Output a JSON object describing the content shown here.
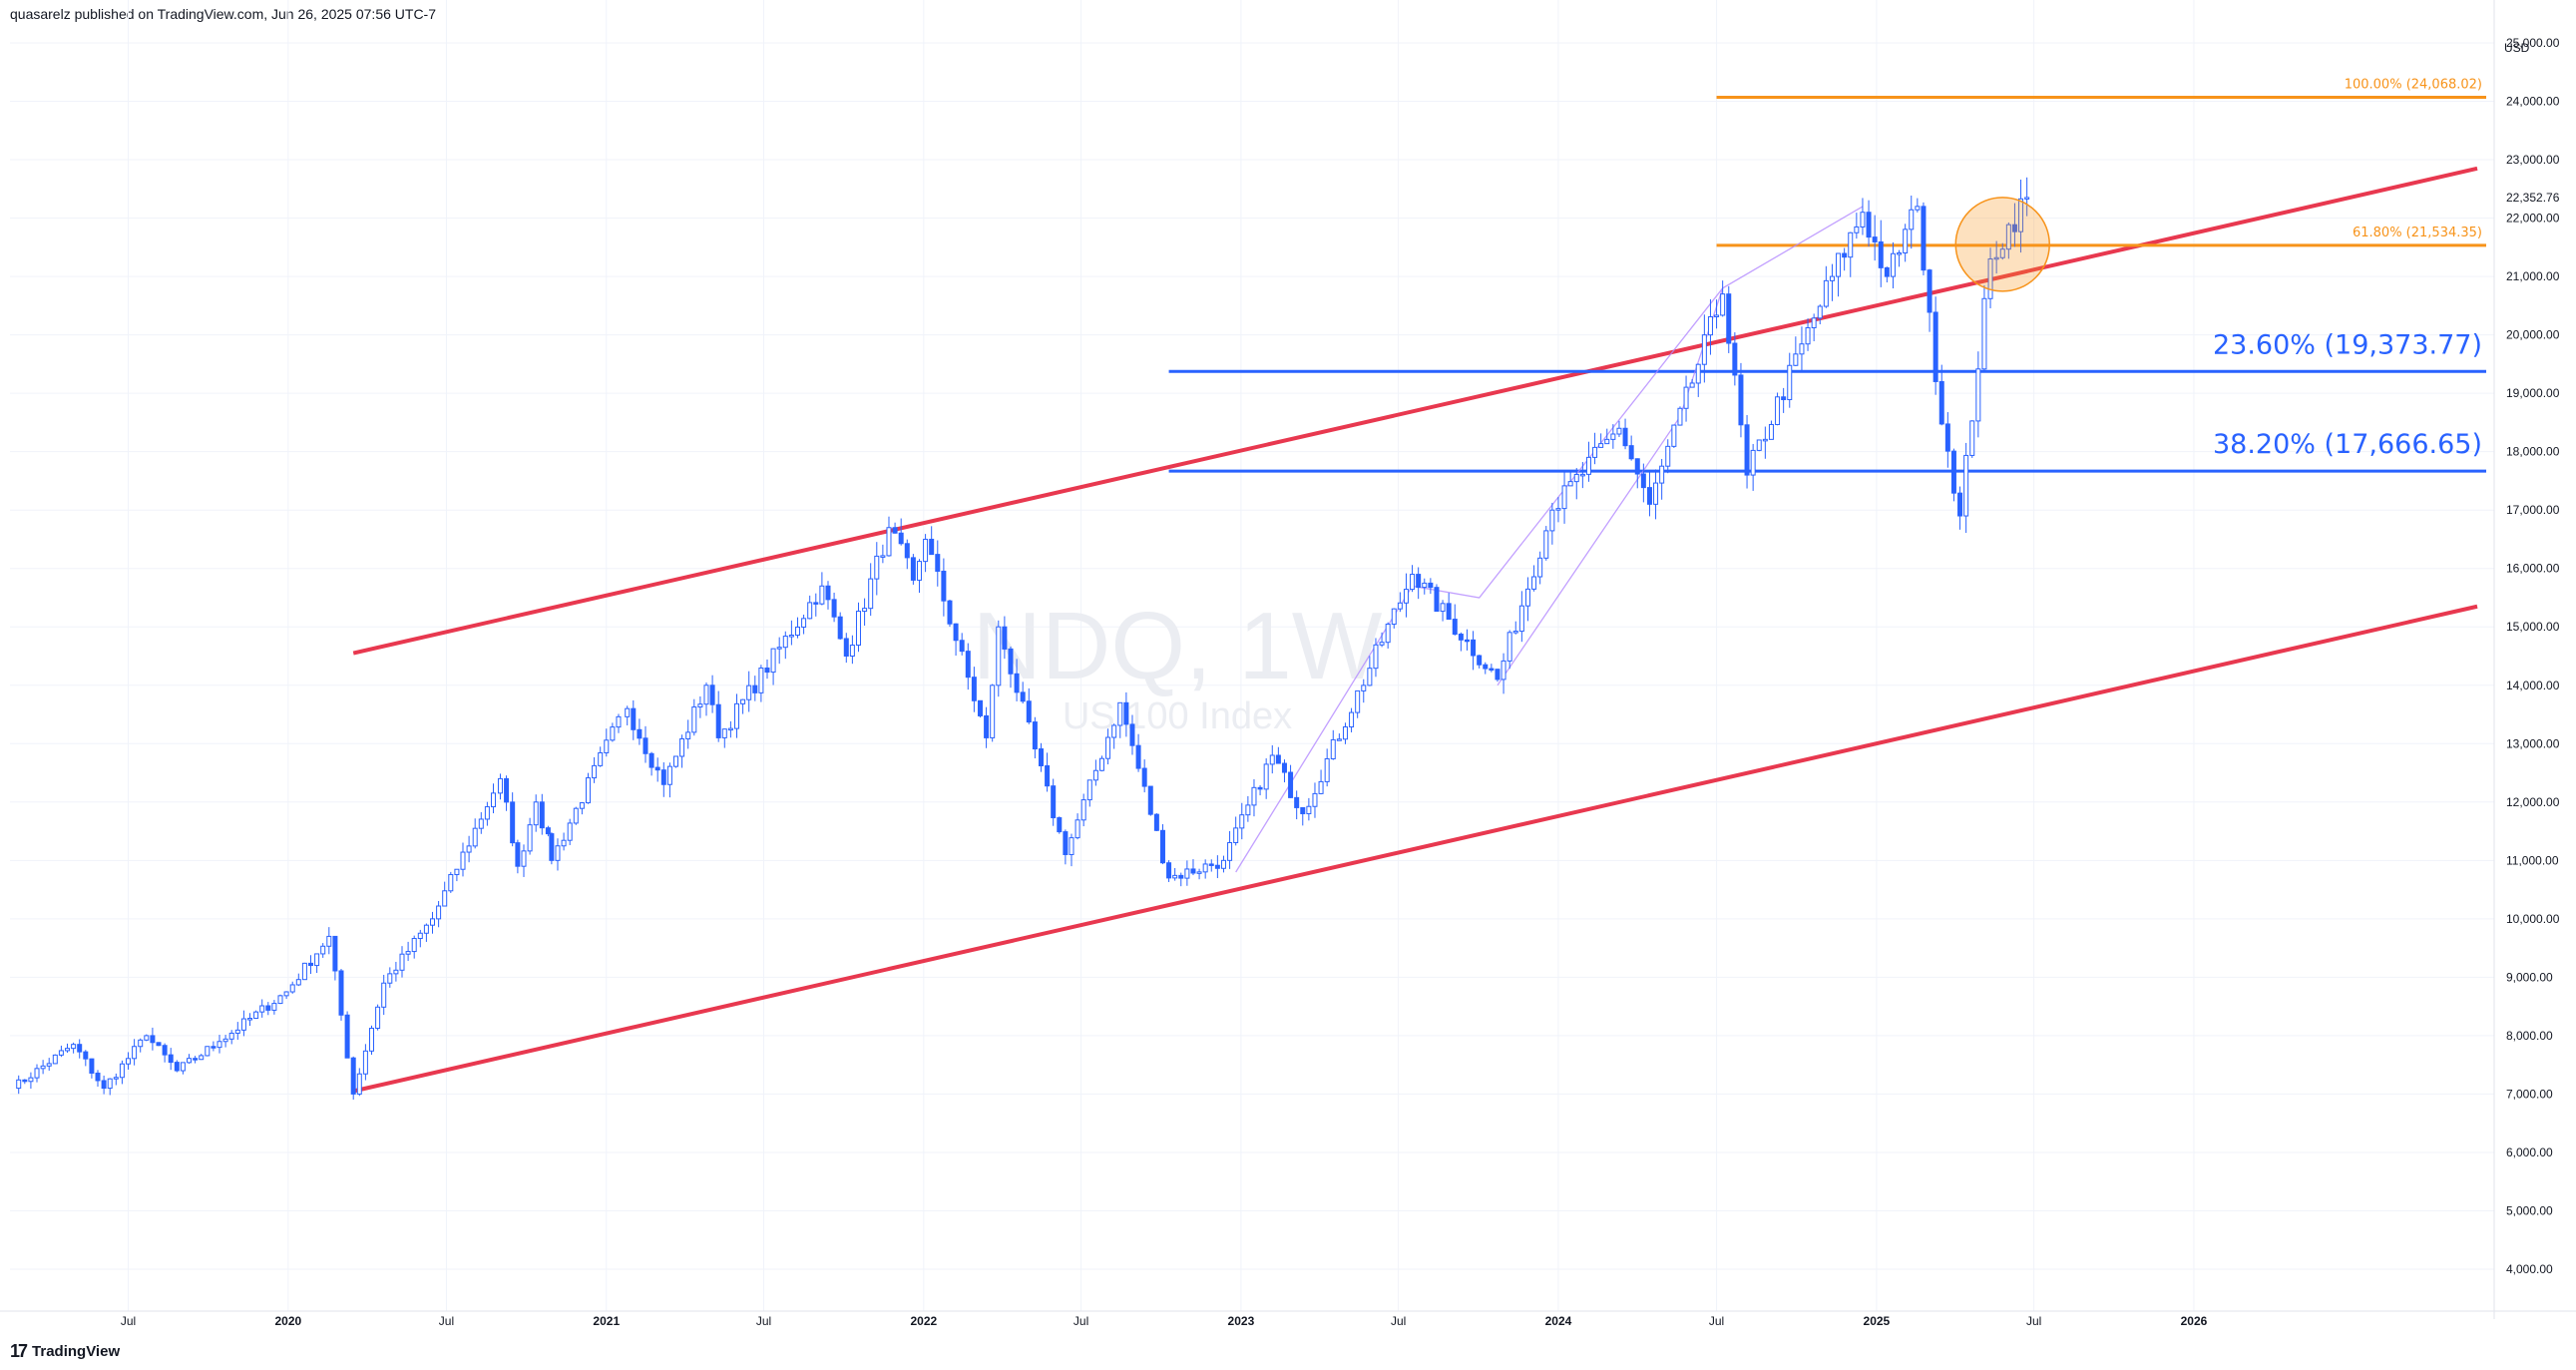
{
  "header": {
    "published_text": "quasarelz published on TradingView.com, Jun 26, 2025 07:56 UTC-7"
  },
  "footer": {
    "brand": "TradingView",
    "logo_glyph": "17"
  },
  "watermark": {
    "symbol": "NDQ, 1W",
    "name": "US 100 Index"
  },
  "colors": {
    "up_candle": "#ffffff",
    "down_candle": "#2962ff",
    "candle_outline": "#2962ff",
    "channel": "#e8384f",
    "fib_blue": "#2962ff",
    "fib_orange": "#f7931a",
    "highlight_circle": "#f7931a",
    "projection_line": "#b388ff"
  },
  "chart_data": {
    "type": "candlestick",
    "currency": "USD",
    "y_scale": "linear",
    "ylim": [
      3500,
      25400
    ],
    "y_ticks": [
      4000,
      5000,
      6000,
      7000,
      8000,
      9000,
      10000,
      11000,
      12000,
      13000,
      14000,
      15000,
      16000,
      17000,
      18000,
      19000,
      20000,
      21000,
      22000,
      23000,
      24000,
      25000
    ],
    "y_tick_labels": [
      "4,000.00",
      "5,000.00",
      "6,000.00",
      "7,000.00",
      "8,000.00",
      "9,000.00",
      "10,000.00",
      "11,000.00",
      "12,000.00",
      "13,000.00",
      "14,000.00",
      "15,000.00",
      "16,000.00",
      "17,000.00",
      "18,000.00",
      "19,000.00",
      "20,000.00",
      "21,000.00",
      "22,000.00",
      "23,000.00",
      "24,000.00",
      "25,000.00"
    ],
    "last_price": 22352.76,
    "last_price_label": "22,352.76",
    "x_range": [
      "2019-02-15",
      "2026-12-01"
    ],
    "x_ticks": [
      {
        "date": "2019-07-01",
        "label": "Jul",
        "bold": false
      },
      {
        "date": "2020-01-01",
        "label": "2020",
        "bold": true
      },
      {
        "date": "2020-07-01",
        "label": "Jul",
        "bold": false
      },
      {
        "date": "2021-01-01",
        "label": "2021",
        "bold": true
      },
      {
        "date": "2021-07-01",
        "label": "Jul",
        "bold": false
      },
      {
        "date": "2022-01-01",
        "label": "2022",
        "bold": true
      },
      {
        "date": "2022-07-01",
        "label": "Jul",
        "bold": false
      },
      {
        "date": "2023-01-01",
        "label": "2023",
        "bold": true
      },
      {
        "date": "2023-07-01",
        "label": "Jul",
        "bold": false
      },
      {
        "date": "2024-01-01",
        "label": "2024",
        "bold": true
      },
      {
        "date": "2024-07-01",
        "label": "Jul",
        "bold": false
      },
      {
        "date": "2025-01-01",
        "label": "2025",
        "bold": true
      },
      {
        "date": "2025-07-01",
        "label": "Jul",
        "bold": false
      },
      {
        "date": "2026-01-01",
        "label": "2026",
        "bold": true
      }
    ],
    "grid": true,
    "price_path": [
      [
        "2019-02-18",
        7100
      ],
      [
        "2019-04-29",
        7850
      ],
      [
        "2019-06-03",
        7100
      ],
      [
        "2019-07-22",
        8000
      ],
      [
        "2019-08-26",
        7400
      ],
      [
        "2019-10-14",
        7900
      ],
      [
        "2019-12-30",
        8750
      ],
      [
        "2020-02-17",
        9700
      ],
      [
        "2020-03-16",
        7000
      ],
      [
        "2020-04-20",
        8900
      ],
      [
        "2020-06-15",
        10000
      ],
      [
        "2020-09-01",
        12400
      ],
      [
        "2020-09-21",
        10900
      ],
      [
        "2020-10-12",
        12000
      ],
      [
        "2020-10-30",
        11000
      ],
      [
        "2021-01-25",
        13600
      ],
      [
        "2021-03-08",
        12300
      ],
      [
        "2021-04-26",
        14000
      ],
      [
        "2021-05-10",
        13100
      ],
      [
        "2021-09-06",
        15700
      ],
      [
        "2021-10-04",
        14500
      ],
      [
        "2021-11-22",
        16700
      ],
      [
        "2021-12-20",
        15800
      ],
      [
        "2022-01-03",
        16500
      ],
      [
        "2022-03-14",
        13100
      ],
      [
        "2022-03-28",
        15000
      ],
      [
        "2022-06-13",
        11100
      ],
      [
        "2022-08-15",
        13700
      ],
      [
        "2022-10-10",
        10700
      ],
      [
        "2022-12-12",
        11000
      ],
      [
        "2023-02-06",
        12800
      ],
      [
        "2023-03-13",
        11800
      ],
      [
        "2023-07-17",
        15900
      ],
      [
        "2023-10-23",
        14100
      ],
      [
        "2023-12-25",
        17000
      ],
      [
        "2024-03-11",
        18400
      ],
      [
        "2024-04-15",
        17100
      ],
      [
        "2024-07-08",
        20700
      ],
      [
        "2024-08-05",
        17600
      ],
      [
        "2024-11-11",
        21000
      ],
      [
        "2024-12-16",
        22100
      ],
      [
        "2025-01-13",
        21000
      ],
      [
        "2025-02-17",
        22200
      ],
      [
        "2025-03-10",
        19200
      ],
      [
        "2025-04-07",
        16900
      ],
      [
        "2025-05-12",
        21300
      ],
      [
        "2025-06-23",
        22352.76
      ]
    ],
    "channel": {
      "upper": [
        [
          "2020-03-16",
          14550
        ],
        [
          "2026-11-23",
          22850
        ]
      ],
      "lower": [
        [
          "2020-03-16",
          7050
        ],
        [
          "2026-11-23",
          15350
        ]
      ]
    },
    "fib_levels": [
      {
        "ratio_label": "23.60% (19,373.77)",
        "value": 19373.77,
        "start": "2022-10-10",
        "color": "blue"
      },
      {
        "ratio_label": "38.20% (17,666.65)",
        "value": 17666.65,
        "start": "2022-10-10",
        "color": "blue"
      },
      {
        "ratio_label": "61.80% (21,534.35)",
        "value": 21534.35,
        "start": "2024-07-01",
        "color": "orange"
      },
      {
        "ratio_label": "100.00% (24,068.02)",
        "value": 24068.02,
        "start": "2024-07-01",
        "color": "orange"
      }
    ],
    "highlight": {
      "date": "2025-05-26",
      "value": 21550
    },
    "projection": {
      "upper_path": [
        [
          "2022-12-26",
          10800
        ],
        [
          "2023-07-17",
          15700
        ],
        [
          "2023-10-02",
          15500
        ],
        [
          "2024-07-08",
          20800
        ],
        [
          "2024-12-16",
          22200
        ]
      ],
      "lower_path": [
        [
          "2023-10-23",
          14000
        ],
        [
          "2024-05-20",
          18600
        ],
        [
          "2024-07-08",
          20800
        ]
      ]
    }
  }
}
